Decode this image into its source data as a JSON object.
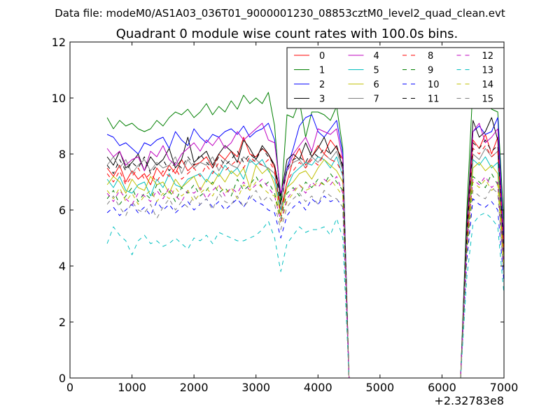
{
  "suptitle": "Data file: modeM0/AS1A03_036T01_9000001230_08853cztM0_level2_quad_clean.evt",
  "chart_data": {
    "type": "line",
    "title": "Quadrant 0 module wise count rates with 100.0s bins.",
    "xlabel": "",
    "ylabel": "",
    "x_offset_label": "+2.32783e8",
    "xlim": [
      0,
      7000
    ],
    "ylim": [
      0,
      12
    ],
    "xticks": [
      0,
      1000,
      2000,
      3000,
      4000,
      5000,
      6000,
      7000
    ],
    "yticks": [
      0,
      2,
      4,
      6,
      8,
      10,
      12
    ],
    "grid": false,
    "legend_position": "top-right",
    "legend_columns": 4,
    "x": [
      600,
      700,
      800,
      900,
      1000,
      1100,
      1200,
      1300,
      1400,
      1500,
      1600,
      1700,
      1800,
      1900,
      2000,
      2100,
      2200,
      2300,
      2400,
      2500,
      2600,
      2700,
      2800,
      2900,
      3000,
      3100,
      3200,
      3300,
      3400,
      3500,
      3600,
      3700,
      3800,
      3900,
      4000,
      4100,
      4200,
      4300,
      4400,
      4500,
      4600,
      4700,
      4800,
      4900,
      5000,
      5100,
      5200,
      5300,
      5400,
      5500,
      5600,
      5700,
      5800,
      5900,
      6000,
      6100,
      6200,
      6300,
      6400,
      6500,
      6600,
      6700,
      6800,
      6900,
      7000
    ],
    "series": [
      {
        "name": "0",
        "color": "#ff0000",
        "dash": "solid",
        "values": [
          7.5,
          7.2,
          7.6,
          7.0,
          7.4,
          7.1,
          7.3,
          6.9,
          7.5,
          7.2,
          7.6,
          7.3,
          7.8,
          7.4,
          7.6,
          7.7,
          7.9,
          7.5,
          8.0,
          7.8,
          8.1,
          7.9,
          8.6,
          8.0,
          7.9,
          8.2,
          8.0,
          7.5,
          6.0,
          7.0,
          7.8,
          8.2,
          7.6,
          7.9,
          8.3,
          8.0,
          8.5,
          8.2,
          7.8,
          0.0,
          0.0,
          0.0,
          0.0,
          0.0,
          0.0,
          0.0,
          0.0,
          0.0,
          0.0,
          0.0,
          0.0,
          0.0,
          0.0,
          0.0,
          0.0,
          0.0,
          0.0,
          0.0,
          5.0,
          8.5,
          8.2,
          8.7,
          8.0,
          8.6,
          5.0
        ]
      },
      {
        "name": "1",
        "color": "#007f00",
        "dash": "solid",
        "values": [
          9.3,
          8.9,
          9.2,
          9.0,
          9.1,
          8.9,
          8.8,
          8.9,
          9.2,
          9.0,
          9.3,
          9.5,
          9.4,
          9.6,
          9.3,
          9.5,
          9.8,
          9.4,
          9.7,
          9.5,
          9.9,
          9.6,
          10.1,
          9.8,
          10.0,
          9.8,
          10.2,
          9.0,
          6.2,
          9.4,
          9.3,
          9.9,
          8.6,
          9.5,
          9.5,
          9.4,
          9.2,
          9.7,
          8.2,
          0.0,
          0.0,
          0.0,
          0.0,
          0.0,
          0.0,
          0.0,
          0.0,
          0.0,
          0.0,
          0.0,
          0.0,
          0.0,
          0.0,
          0.0,
          0.0,
          0.0,
          0.0,
          0.0,
          6.0,
          10.5,
          9.8,
          10.0,
          9.6,
          9.5,
          5.5
        ]
      },
      {
        "name": "2",
        "color": "#0000ff",
        "dash": "solid",
        "values": [
          8.7,
          8.6,
          8.3,
          8.4,
          8.2,
          8.0,
          8.4,
          8.3,
          8.5,
          8.6,
          8.2,
          8.8,
          8.5,
          8.3,
          8.9,
          8.6,
          8.4,
          8.7,
          8.6,
          8.8,
          8.9,
          8.7,
          9.0,
          8.6,
          8.8,
          8.9,
          9.1,
          8.5,
          6.5,
          7.5,
          8.2,
          9.0,
          9.3,
          9.4,
          8.8,
          8.6,
          8.9,
          9.2,
          8.0,
          0.0,
          0.0,
          0.0,
          0.0,
          0.0,
          0.0,
          0.0,
          0.0,
          0.0,
          0.0,
          0.0,
          0.0,
          0.0,
          0.0,
          0.0,
          0.0,
          0.0,
          0.0,
          0.0,
          5.5,
          8.8,
          9.0,
          8.7,
          8.8,
          9.3,
          4.8
        ]
      },
      {
        "name": "3",
        "color": "#000000",
        "dash": "solid",
        "values": [
          7.9,
          7.6,
          8.1,
          7.5,
          7.7,
          8.0,
          7.4,
          7.9,
          7.6,
          7.8,
          8.2,
          7.5,
          7.8,
          8.6,
          7.7,
          7.9,
          8.1,
          7.6,
          8.0,
          8.3,
          8.1,
          7.7,
          8.5,
          8.2,
          7.8,
          8.3,
          8.0,
          7.6,
          6.5,
          7.8,
          8.0,
          7.8,
          8.4,
          7.9,
          8.2,
          8.6,
          8.0,
          8.3,
          7.5,
          0.0,
          0.0,
          0.0,
          0.0,
          0.0,
          0.0,
          0.0,
          0.0,
          0.0,
          0.0,
          0.0,
          0.0,
          0.0,
          0.0,
          0.0,
          0.0,
          0.0,
          0.0,
          0.0,
          5.5,
          9.2,
          8.6,
          8.8,
          9.3,
          8.5,
          4.5
        ]
      },
      {
        "name": "4",
        "color": "#bf00bf",
        "dash": "solid",
        "values": [
          8.2,
          7.9,
          8.1,
          7.6,
          7.8,
          7.9,
          7.4,
          8.1,
          7.9,
          8.3,
          7.8,
          7.6,
          8.0,
          8.2,
          8.4,
          8.1,
          8.5,
          8.3,
          8.6,
          8.2,
          8.4,
          8.8,
          8.5,
          8.7,
          8.9,
          9.1,
          8.5,
          8.4,
          6.6,
          7.4,
          8.0,
          8.3,
          8.6,
          8.1,
          8.9,
          8.8,
          8.7,
          8.9,
          7.8,
          0.0,
          0.0,
          0.0,
          0.0,
          0.0,
          0.0,
          0.0,
          0.0,
          0.0,
          0.0,
          0.0,
          0.0,
          0.0,
          0.0,
          0.0,
          0.0,
          0.0,
          0.0,
          0.0,
          5.2,
          8.8,
          9.1,
          8.4,
          8.6,
          8.9,
          4.5
        ]
      },
      {
        "name": "5",
        "color": "#00bfbf",
        "dash": "solid",
        "values": [
          7.1,
          6.8,
          7.2,
          6.7,
          6.6,
          6.9,
          7.0,
          6.5,
          7.1,
          6.8,
          7.3,
          6.9,
          6.8,
          7.1,
          7.2,
          7.3,
          7.0,
          7.4,
          7.2,
          7.6,
          7.3,
          7.5,
          7.1,
          7.8,
          7.6,
          7.8,
          7.4,
          7.1,
          6.0,
          6.8,
          7.3,
          7.5,
          7.7,
          7.6,
          7.9,
          7.8,
          7.5,
          7.9,
          7.2,
          0.0,
          0.0,
          0.0,
          0.0,
          0.0,
          0.0,
          0.0,
          0.0,
          0.0,
          0.0,
          0.0,
          0.0,
          0.0,
          0.0,
          0.0,
          0.0,
          0.0,
          0.0,
          0.0,
          4.8,
          7.8,
          7.6,
          7.9,
          7.5,
          7.7,
          4.2
        ]
      },
      {
        "name": "6",
        "color": "#bfbf00",
        "dash": "solid",
        "values": [
          6.9,
          7.2,
          7.0,
          6.6,
          7.1,
          6.8,
          6.7,
          7.2,
          6.9,
          7.0,
          6.6,
          7.1,
          6.8,
          7.0,
          7.2,
          6.7,
          7.1,
          6.9,
          7.3,
          7.0,
          7.4,
          7.2,
          7.5,
          6.8,
          7.6,
          7.3,
          7.5,
          6.9,
          5.8,
          6.8,
          7.0,
          7.3,
          7.4,
          7.1,
          7.5,
          7.8,
          7.6,
          7.4,
          7.0,
          0.0,
          0.0,
          0.0,
          0.0,
          0.0,
          0.0,
          0.0,
          0.0,
          0.0,
          0.0,
          0.0,
          0.0,
          0.0,
          0.0,
          0.0,
          0.0,
          0.0,
          0.0,
          0.0,
          4.8,
          7.5,
          7.7,
          7.4,
          7.6,
          7.3,
          4.0
        ]
      },
      {
        "name": "7",
        "color": "#7f7f7f",
        "dash": "solid",
        "values": [
          7.6,
          7.9,
          7.5,
          7.8,
          7.3,
          7.6,
          7.8,
          7.4,
          7.7,
          7.5,
          7.6,
          7.9,
          7.3,
          7.8,
          7.5,
          7.7,
          7.6,
          7.9,
          7.4,
          7.8,
          7.6,
          7.5,
          7.9,
          7.7,
          7.8,
          7.6,
          7.5,
          7.3,
          6.2,
          7.4,
          7.7,
          7.8,
          7.5,
          7.9,
          7.7,
          8.0,
          7.8,
          8.1,
          7.4,
          0.0,
          0.0,
          0.0,
          0.0,
          0.0,
          0.0,
          0.0,
          0.0,
          0.0,
          0.0,
          0.0,
          0.0,
          0.0,
          0.0,
          0.0,
          0.0,
          0.0,
          0.0,
          0.0,
          5.0,
          8.0,
          7.8,
          8.2,
          7.9,
          8.1,
          4.3
        ]
      },
      {
        "name": "8",
        "color": "#ff0000",
        "dash": "dashed",
        "values": [
          7.3,
          7.0,
          7.4,
          6.9,
          7.2,
          7.5,
          7.1,
          7.3,
          7.0,
          7.4,
          7.2,
          7.5,
          7.1,
          7.3,
          7.5,
          7.2,
          7.6,
          7.3,
          7.7,
          7.4,
          7.6,
          7.8,
          7.5,
          7.9,
          7.7,
          7.6,
          7.8,
          7.4,
          5.8,
          7.0,
          7.4,
          7.7,
          7.5,
          7.8,
          7.6,
          8.0,
          7.8,
          7.7,
          7.3,
          0.0,
          0.0,
          0.0,
          0.0,
          0.0,
          0.0,
          0.0,
          0.0,
          0.0,
          0.0,
          0.0,
          0.0,
          0.0,
          0.0,
          0.0,
          0.0,
          0.0,
          0.0,
          0.0,
          4.9,
          8.2,
          8.0,
          8.3,
          7.9,
          8.1,
          4.4
        ]
      },
      {
        "name": "9",
        "color": "#007f00",
        "dash": "dashed",
        "values": [
          6.4,
          6.7,
          6.2,
          6.5,
          6.8,
          6.3,
          6.6,
          6.4,
          6.9,
          6.5,
          6.7,
          6.3,
          6.8,
          6.6,
          6.9,
          6.5,
          6.7,
          7.0,
          6.6,
          6.8,
          6.5,
          7.1,
          6.7,
          6.9,
          7.2,
          6.8,
          7.0,
          6.6,
          5.7,
          6.6,
          6.8,
          6.5,
          7.0,
          6.8,
          7.1,
          6.9,
          7.3,
          7.0,
          6.7,
          0.0,
          0.0,
          0.0,
          0.0,
          0.0,
          0.0,
          0.0,
          0.0,
          0.0,
          0.0,
          0.0,
          0.0,
          0.0,
          0.0,
          0.0,
          0.0,
          0.0,
          0.0,
          0.0,
          4.6,
          7.2,
          7.0,
          6.8,
          7.3,
          6.9,
          3.8
        ]
      },
      {
        "name": "10",
        "color": "#0000ff",
        "dash": "dashed",
        "values": [
          5.9,
          6.1,
          5.8,
          6.0,
          6.2,
          5.9,
          6.1,
          5.8,
          6.3,
          6.0,
          6.2,
          5.9,
          6.1,
          6.3,
          6.0,
          6.2,
          6.4,
          6.1,
          6.3,
          6.0,
          6.2,
          6.4,
          6.1,
          6.5,
          6.3,
          6.2,
          6.0,
          5.9,
          5.0,
          5.8,
          6.1,
          6.3,
          6.0,
          6.4,
          6.2,
          6.5,
          6.3,
          6.4,
          6.1,
          0.0,
          0.0,
          0.0,
          0.0,
          0.0,
          0.0,
          0.0,
          0.0,
          0.0,
          0.0,
          0.0,
          0.0,
          0.0,
          0.0,
          0.0,
          0.0,
          0.0,
          0.0,
          0.0,
          4.2,
          6.4,
          6.2,
          6.1,
          6.3,
          6.0,
          3.4
        ]
      },
      {
        "name": "11",
        "color": "#000000",
        "dash": "dashed",
        "values": [
          7.6,
          7.3,
          7.8,
          7.4,
          7.7,
          7.5,
          7.9,
          7.3,
          7.6,
          7.8,
          7.4,
          7.7,
          7.5,
          7.9,
          7.6,
          8.0,
          7.7,
          7.5,
          7.9,
          7.6,
          7.8,
          8.1,
          7.7,
          8.0,
          7.8,
          8.2,
          7.9,
          7.6,
          6.2,
          7.5,
          7.8,
          7.9,
          7.7,
          8.1,
          7.9,
          8.2,
          8.0,
          8.3,
          7.6,
          0.0,
          0.0,
          0.0,
          0.0,
          0.0,
          0.0,
          0.0,
          0.0,
          0.0,
          0.0,
          0.0,
          0.0,
          0.0,
          0.0,
          0.0,
          0.0,
          0.0,
          0.0,
          0.0,
          5.1,
          8.4,
          8.2,
          8.5,
          8.1,
          8.3,
          4.4
        ]
      },
      {
        "name": "12",
        "color": "#bf00bf",
        "dash": "dashed",
        "values": [
          6.6,
          6.3,
          6.7,
          6.4,
          6.2,
          6.6,
          6.5,
          6.3,
          6.7,
          6.4,
          6.8,
          6.5,
          6.3,
          6.7,
          6.6,
          6.8,
          6.4,
          6.7,
          6.9,
          6.5,
          6.8,
          6.6,
          7.0,
          6.7,
          6.9,
          7.1,
          6.8,
          6.5,
          5.6,
          6.4,
          6.7,
          6.9,
          6.6,
          7.0,
          6.8,
          7.1,
          6.9,
          7.2,
          6.6,
          0.0,
          0.0,
          0.0,
          0.0,
          0.0,
          0.0,
          0.0,
          0.0,
          0.0,
          0.0,
          0.0,
          0.0,
          0.0,
          0.0,
          0.0,
          0.0,
          0.0,
          0.0,
          0.0,
          4.7,
          7.1,
          6.9,
          7.2,
          6.8,
          7.0,
          3.9
        ]
      },
      {
        "name": "13",
        "color": "#00bfbf",
        "dash": "dashed",
        "values": [
          4.8,
          5.4,
          5.1,
          4.9,
          4.4,
          4.9,
          5.1,
          4.8,
          4.9,
          4.7,
          4.8,
          5.0,
          4.8,
          4.6,
          5.0,
          4.9,
          5.1,
          4.8,
          5.2,
          5.1,
          5.0,
          4.9,
          4.9,
          5.0,
          5.1,
          5.3,
          5.6,
          5.0,
          3.8,
          4.8,
          5.1,
          5.4,
          5.2,
          5.3,
          5.3,
          5.4,
          5.1,
          5.7,
          5.0,
          0.0,
          0.0,
          0.0,
          0.0,
          0.0,
          0.0,
          0.0,
          0.0,
          0.0,
          0.0,
          0.0,
          0.0,
          0.0,
          0.0,
          0.0,
          0.0,
          0.0,
          0.0,
          0.0,
          3.6,
          5.5,
          5.8,
          5.9,
          5.7,
          5.4,
          3.0
        ]
      },
      {
        "name": "14",
        "color": "#bfbf00",
        "dash": "dashed",
        "values": [
          6.7,
          6.4,
          6.8,
          6.3,
          6.6,
          6.2,
          6.5,
          6.7,
          6.3,
          6.6,
          6.4,
          6.8,
          6.5,
          6.7,
          6.3,
          6.6,
          6.8,
          6.5,
          6.9,
          6.6,
          6.8,
          6.4,
          6.9,
          6.7,
          7.0,
          6.8,
          6.6,
          6.5,
          5.5,
          6.3,
          6.6,
          6.9,
          6.7,
          6.8,
          7.0,
          6.9,
          7.1,
          6.8,
          6.5,
          0.0,
          0.0,
          0.0,
          0.0,
          0.0,
          0.0,
          0.0,
          0.0,
          0.0,
          0.0,
          0.0,
          0.0,
          0.0,
          0.0,
          0.0,
          0.0,
          0.0,
          0.0,
          0.0,
          4.6,
          7.0,
          6.8,
          7.1,
          6.7,
          6.9,
          3.8
        ]
      },
      {
        "name": "15",
        "color": "#7f7f7f",
        "dash": "dashed",
        "values": [
          6.2,
          6.5,
          6.1,
          5.8,
          6.3,
          6.0,
          5.9,
          6.2,
          5.7,
          6.1,
          6.4,
          6.0,
          6.3,
          6.1,
          6.5,
          6.2,
          6.4,
          6.0,
          6.6,
          6.3,
          6.2,
          6.5,
          6.1,
          6.4,
          6.7,
          6.3,
          6.5,
          6.2,
          5.3,
          6.1,
          6.4,
          6.6,
          6.3,
          6.5,
          6.2,
          6.7,
          6.5,
          6.4,
          6.1,
          0.0,
          0.0,
          0.0,
          0.0,
          0.0,
          0.0,
          0.0,
          0.0,
          0.0,
          0.0,
          0.0,
          0.0,
          0.0,
          0.0,
          0.0,
          0.0,
          0.0,
          0.0,
          0.0,
          4.4,
          6.7,
          6.5,
          6.4,
          6.8,
          6.6,
          3.6
        ]
      }
    ]
  }
}
